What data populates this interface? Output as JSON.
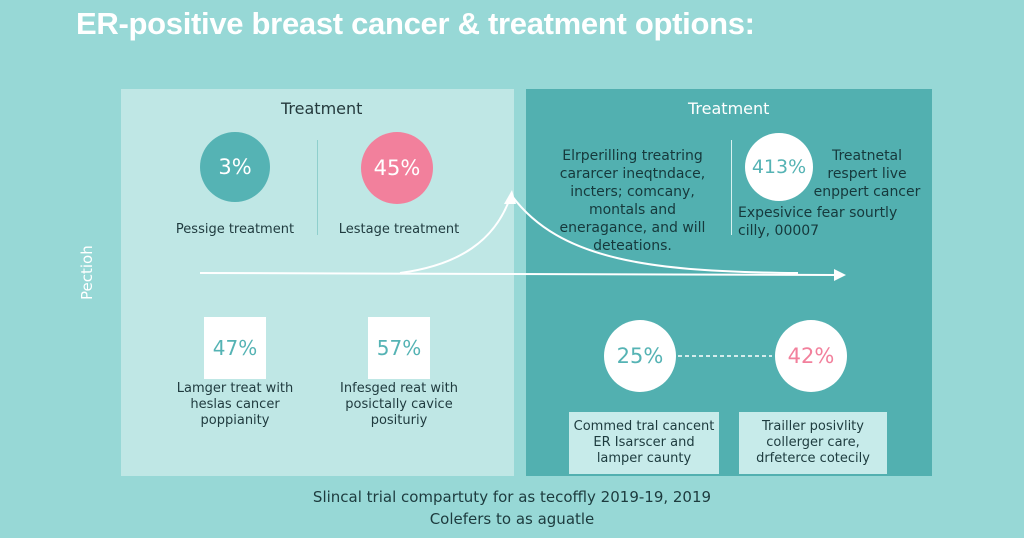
{
  "title": "ER-positive breast cancer & treatment options:",
  "side_label": "Pectioh",
  "left_panel": {
    "heading": "Treatment",
    "top_stats": [
      {
        "value": "3%",
        "label": "Pessige treatment"
      },
      {
        "value": "45%",
        "label": "Lestage treatment"
      }
    ],
    "bottom_stats": [
      {
        "value": "47%",
        "label_lines": [
          "Lamger treat with",
          "heslas cancer",
          "poppianity"
        ]
      },
      {
        "value": "57%",
        "label_lines": [
          "Infesged reat with",
          "posictally cavice",
          "posituriy"
        ]
      }
    ]
  },
  "right_panel": {
    "heading": "Treatment",
    "description_lines": [
      "Elrperilling treatring",
      "cararcer ineqtndace,",
      "incters; comcany,",
      "montals and",
      "eneragance, and will",
      "deteations."
    ],
    "stat": {
      "value": "413%",
      "text_lines": [
        "Treatnetal",
        "respert live",
        "enppert cancer"
      ]
    },
    "sub_text_lines": [
      "Expesivice fear sourtly",
      "cilly, 00007"
    ],
    "compare": [
      {
        "value": "25%"
      },
      {
        "value": "42%"
      }
    ],
    "cards": [
      {
        "lines": [
          "Commed tral cancent",
          "ER Isarscer and",
          "lamper caunty"
        ]
      },
      {
        "lines": [
          "Trailler posivlity",
          "collerger care,",
          "drfeterce cotecily"
        ]
      }
    ]
  },
  "footer": {
    "line1": "Slincal trial compartuty for as tecoffly 2019-19, 2019",
    "line2": "Colefers to as aguatle"
  },
  "colors": {
    "background": "#97d8d6",
    "left_panel": "#bfe7e5",
    "right_panel": "#52b0b0",
    "teal": "#55b3b4",
    "pink": "#f2809c"
  }
}
